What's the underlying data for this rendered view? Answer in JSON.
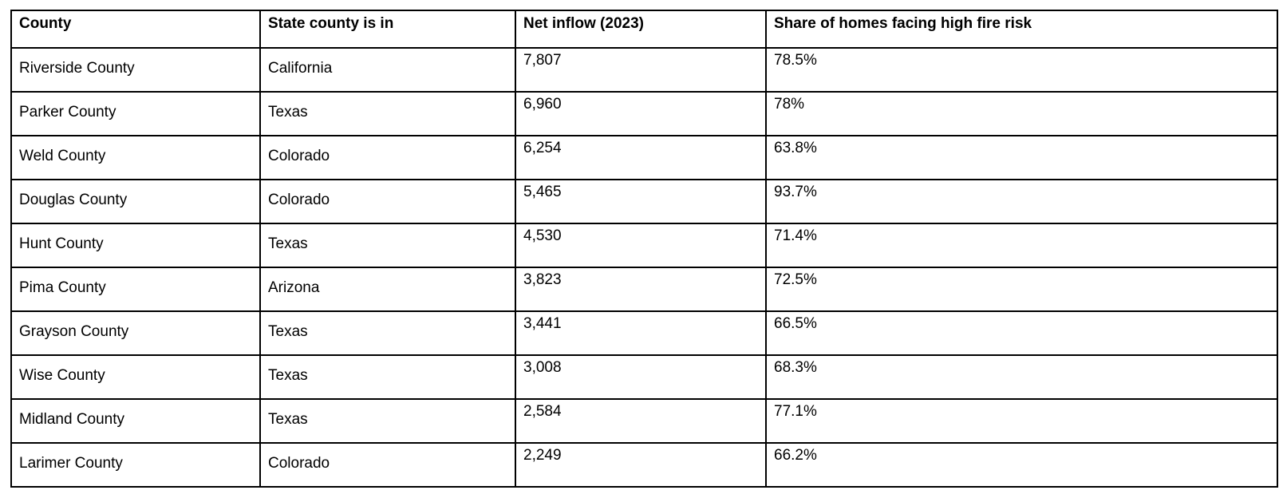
{
  "colors": {
    "background": "#ffffff",
    "border": "#000000",
    "text": "#000000"
  },
  "table": {
    "columns": [
      "County",
      "State county is in",
      "Net inflow (2023)",
      "Share of homes facing high fire risk"
    ],
    "column_names": [
      "county",
      "state",
      "net-inflow",
      "fire-risk-share"
    ],
    "rows": [
      [
        "Riverside County",
        "California",
        "7,807",
        "78.5%"
      ],
      [
        "Parker County",
        "Texas",
        "6,960",
        "78%"
      ],
      [
        "Weld County",
        "Colorado",
        "6,254",
        "63.8%"
      ],
      [
        "Douglas County",
        "Colorado",
        "5,465",
        "93.7%"
      ],
      [
        "Hunt County",
        "Texas",
        "4,530",
        "71.4%"
      ],
      [
        "Pima County",
        "Arizona",
        "3,823",
        "72.5%"
      ],
      [
        "Grayson County",
        "Texas",
        "3,441",
        "66.5%"
      ],
      [
        "Wise County",
        "Texas",
        "3,008",
        "68.3%"
      ],
      [
        "Midland County",
        "Texas",
        "2,584",
        "77.1%"
      ],
      [
        "Larimer County",
        "Colorado",
        "2,249",
        "66.2%"
      ]
    ]
  }
}
